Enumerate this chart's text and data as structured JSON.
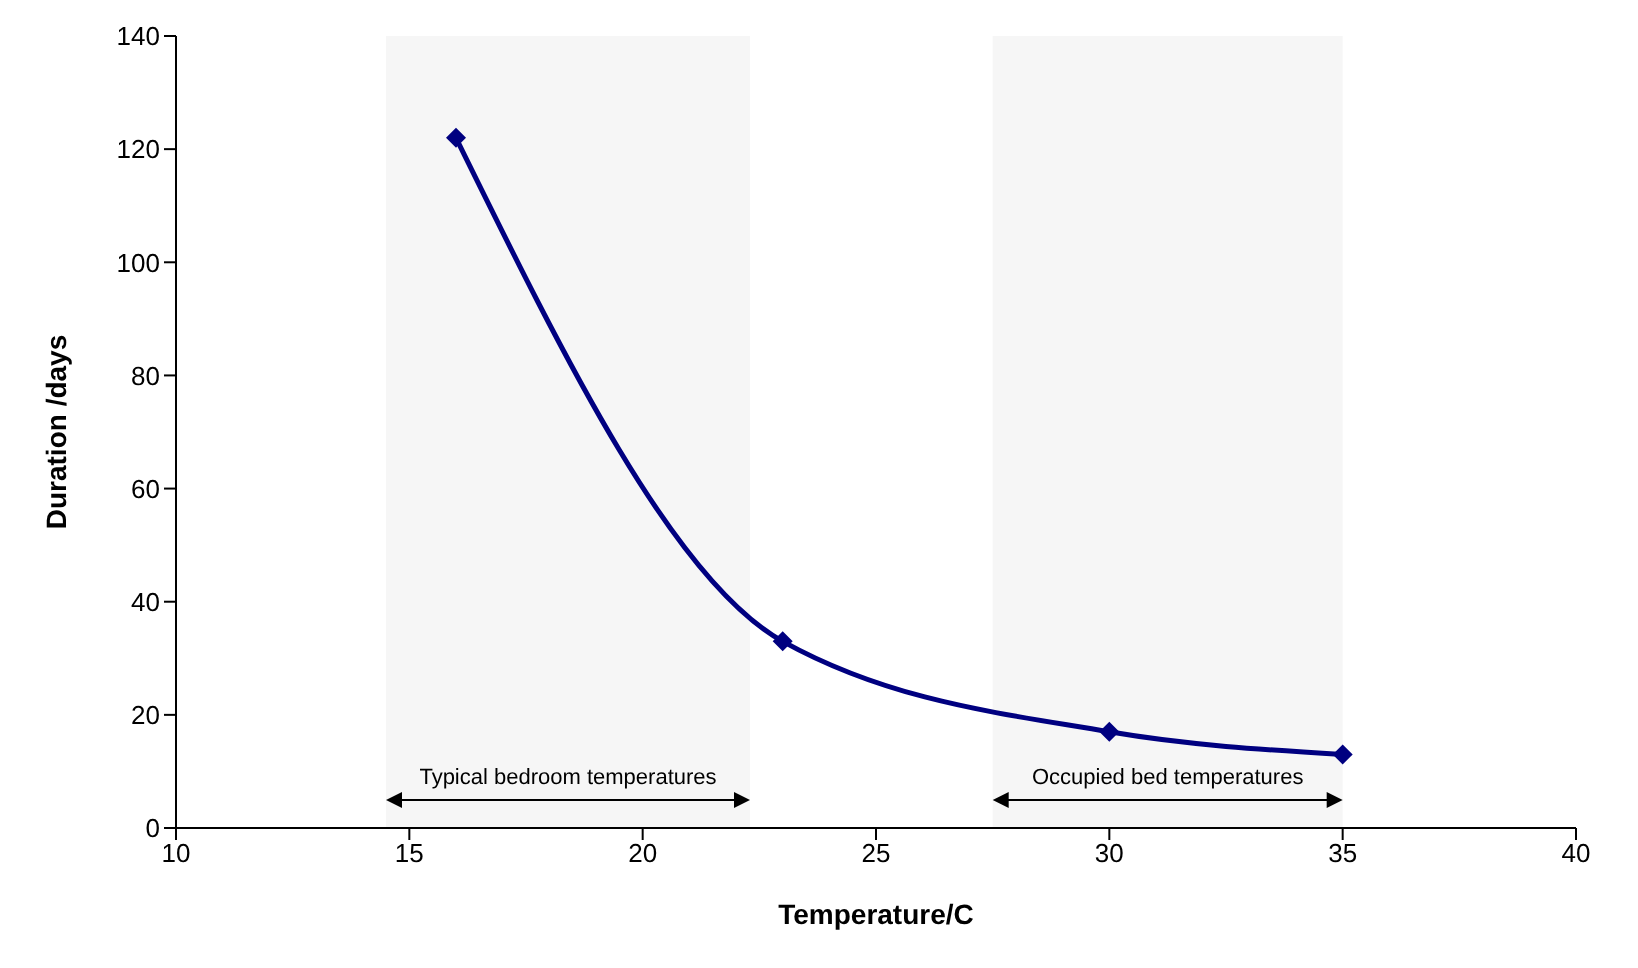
{
  "chart_data": {
    "type": "line",
    "xlabel": "Temperature/C",
    "ylabel": "Duration /days",
    "x": [
      16,
      23,
      30,
      35
    ],
    "series": [
      {
        "color": "#000080",
        "values": [
          122,
          33,
          17,
          13
        ]
      }
    ],
    "xlim": [
      10,
      40
    ],
    "xticks": [
      10,
      15,
      20,
      25,
      30,
      35,
      40
    ],
    "ylim": [
      0,
      140
    ],
    "yticks": [
      0,
      20,
      40,
      60,
      80,
      100,
      120,
      140
    ],
    "grid": false,
    "legend": false,
    "marker": "diamond",
    "line_style": "solid",
    "bands": [
      {
        "axis": "x",
        "from": 14.5,
        "to": 22.3,
        "label": "Typical bedroom temperatures",
        "color": "#000000"
      },
      {
        "axis": "x",
        "from": 27.5,
        "to": 35,
        "label": "Occupied bed temperatures",
        "color": "#000000"
      }
    ]
  }
}
